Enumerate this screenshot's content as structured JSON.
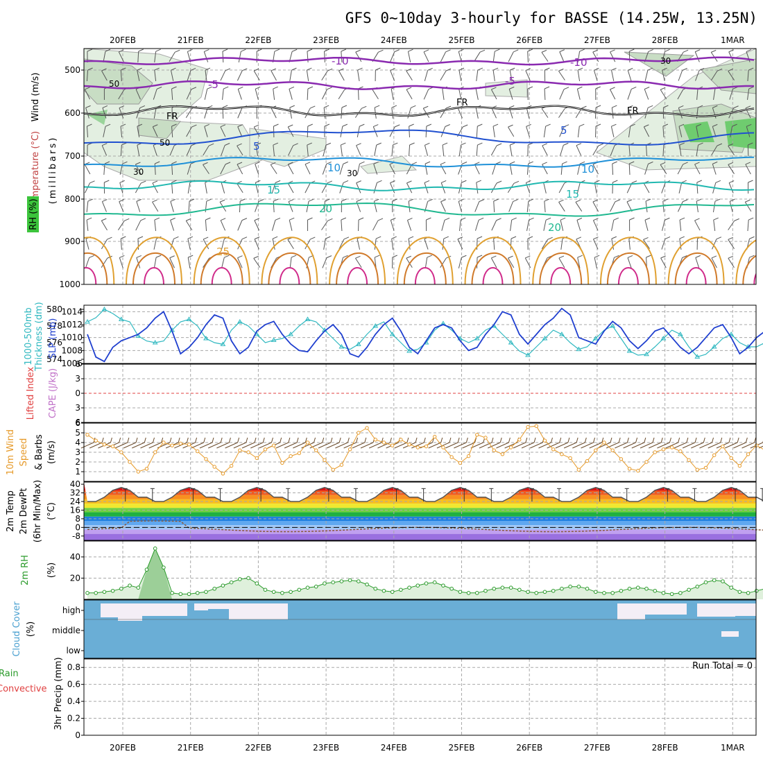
{
  "title": "GFS 0~10day 3-hourly for BASSE (14.25W, 13.25N)",
  "dates": [
    "20FEB",
    "21FEB",
    "22FEB",
    "23FEB",
    "24FEB",
    "25FEB",
    "26FEB",
    "27FEB",
    "28FEB",
    "1MAR"
  ],
  "colors": {
    "grid": "#a8a8a8",
    "wind_barb": "#555555",
    "slp": "#1f3fcf",
    "thickness": "#2fb8c0",
    "speed10m": "#e69a2a",
    "cloud": "#6aaed6",
    "cloud_clear": "#f4eef6",
    "rh_fill": "#dff0dc",
    "rh_line": "#2a9a2a",
    "zero_line": "#e04040"
  },
  "panels": {
    "upper": {
      "label_wind": "Wind (m/s)",
      "label_temp": "Temperature (°C)",
      "label_mb": "(millibars)",
      "label_rh": "RH (%)",
      "pressure_ticks": [
        "500",
        "600",
        "700",
        "800",
        "900",
        "1000"
      ],
      "contour_labels": {
        "t_m10": "-10",
        "t_m5": "-5",
        "t_fr": "FR",
        "t_5": "5",
        "t_10": "10",
        "t_15": "15",
        "t_20": "20",
        "t_25": "25",
        "rh_30": "30",
        "rh_50": "50"
      }
    },
    "slp": {
      "label_a": "1000-500mb",
      "label_b": "Thickness (dm)",
      "label_c": "SLP (mb)",
      "thick_ticks": [
        "580",
        "578",
        "576",
        "574"
      ],
      "slp_ticks": [
        "1014",
        "1012",
        "1010",
        "1008",
        "1006"
      ]
    },
    "cape": {
      "label_a": "Lifted Index",
      "label_b": "CAPE (J/kg)",
      "ticks": [
        "6",
        "3",
        "0",
        "3",
        "6"
      ]
    },
    "wind10": {
      "label_a": "10m Wind",
      "label_b": "Speed",
      "label_c": "& Barbs",
      "label_d": "(m/s)",
      "ticks": [
        "6",
        "5",
        "4",
        "3",
        "2",
        "1"
      ]
    },
    "temp2m": {
      "label_a": "2m Temp",
      "label_b": "2m DewPt",
      "label_c": "(6hr Min/Max)",
      "label_d": "(°C)",
      "ticks": [
        "40",
        "32",
        "24",
        "16",
        "8",
        "0",
        "-8"
      ]
    },
    "rh2m": {
      "label_a": "2m RH",
      "label_b": "(%)",
      "ticks": [
        "40",
        "20"
      ]
    },
    "cloud": {
      "label_a": "Cloud Cover",
      "label_b": "(%)",
      "ticks": [
        "high",
        "middle",
        "low"
      ]
    },
    "precip": {
      "label_a": "Total / Rain",
      "label_b": "Convective",
      "label_c": "3hr Precip (mm)",
      "ticks": [
        "0.8",
        "0.6",
        "0.4",
        "0.2",
        "0"
      ],
      "run_total": "Run Total = 0"
    }
  },
  "chart_data": [
    {
      "type": "line",
      "name": "SLP (mb)",
      "x_start": "19FEB 12Z",
      "x_step_hours": 3,
      "ylim": [
        1006,
        1015
      ],
      "values": [
        1010.5,
        1007.0,
        1006.3,
        1008.5,
        1009.5,
        1010.0,
        1010.5,
        1011.5,
        1013.0,
        1014.0,
        1011.0,
        1007.5,
        1008.5,
        1010.0,
        1012.0,
        1013.5,
        1013.0,
        1009.5,
        1007.5,
        1008.5,
        1011.0,
        1012.0,
        1012.5,
        1010.5,
        1009.0,
        1008.0,
        1007.8,
        1009.5,
        1011.0,
        1012.0,
        1010.5,
        1007.5,
        1007.0,
        1008.5,
        1010.5,
        1012.0,
        1013.0,
        1011.0,
        1008.5,
        1007.5,
        1009.5,
        1011.5,
        1012.0,
        1011.5,
        1009.5,
        1008.0,
        1008.5,
        1010.5,
        1012.0,
        1014.0,
        1013.5,
        1010.5,
        1009.0,
        1010.5,
        1012.0,
        1013.0,
        1014.5,
        1013.5,
        1010.0,
        1009.5,
        1009.0,
        1011.0,
        1012.5,
        1011.5,
        1009.5,
        1008.3,
        1009.5,
        1011.0,
        1011.5,
        1010.0,
        1008.5,
        1007.5,
        1008.5,
        1010.0,
        1011.5,
        1012.0,
        1010.0,
        1007.5,
        1008.5,
        1010.0,
        1011.0,
        1011.5,
        1010.0,
        1009.0,
        1009.0,
        1010.0,
        1012.0,
        1013.5,
        1011.5,
        1008.0,
        1009.5,
        1010.5
      ]
    },
    {
      "type": "line",
      "name": "1000-500mb Thickness (dm)",
      "x_start": "19FEB 12Z",
      "x_step_hours": 3,
      "ylim": [
        573.5,
        580.5
      ],
      "values": [
        578.5,
        579.0,
        580.0,
        579.5,
        578.8,
        578.5,
        576.8,
        576.2,
        576.0,
        576.2,
        577.5,
        578.5,
        578.8,
        578.0,
        576.5,
        576.0,
        575.8,
        577.5,
        578.5,
        578.0,
        577.0,
        576.0,
        576.3,
        576.5,
        577.0,
        578.0,
        578.8,
        578.5,
        577.5,
        576.5,
        575.5,
        575.2,
        575.8,
        577.0,
        578.0,
        578.5,
        577.0,
        576.0,
        575.0,
        575.2,
        576.0,
        577.5,
        578.3,
        577.5,
        576.5,
        576.0,
        576.5,
        577.5,
        578.0,
        577.0,
        576.0,
        575.0,
        574.5,
        575.5,
        576.5,
        577.5,
        577.0,
        576.0,
        575.2,
        575.5,
        576.5,
        577.5,
        578.0,
        576.5,
        575.0,
        574.5,
        574.6,
        575.5,
        576.5,
        577.5,
        577.0,
        575.5,
        574.3,
        574.6,
        575.5,
        576.5,
        577.0,
        576.0,
        575.5,
        575.5,
        576.0,
        577.0,
        578.5,
        578.5,
        577.5,
        576.3,
        575.5,
        575.5,
        576.5,
        576.0,
        575.0,
        574.3,
        574.5
      ]
    },
    {
      "type": "line",
      "name": "10m Wind Speed (m/s)",
      "x_start": "19FEB 12Z",
      "x_step_hours": 3,
      "ylim": [
        0,
        6
      ],
      "values": [
        4.8,
        4.2,
        3.8,
        3.6,
        3.0,
        2.0,
        1.0,
        1.3,
        3.0,
        4.0,
        3.7,
        3.9,
        3.8,
        3.1,
        2.3,
        1.5,
        0.8,
        1.6,
        3.2,
        3.0,
        2.4,
        3.3,
        3.7,
        1.9,
        2.6,
        2.9,
        4.0,
        3.2,
        2.2,
        1.2,
        1.7,
        3.3,
        5.0,
        5.5,
        4.3,
        4.0,
        3.7,
        4.3,
        3.8,
        3.5,
        3.6,
        4.6,
        3.5,
        2.5,
        1.9,
        2.6,
        4.8,
        4.5,
        3.2,
        2.8,
        3.5,
        4.3,
        5.6,
        5.7,
        4.2,
        3.3,
        2.8,
        2.4,
        1.2,
        2.1,
        3.2,
        4.0,
        3.2,
        2.3,
        1.3,
        1.1,
        2.0,
        3.0,
        3.3,
        3.5,
        3.1,
        2.2,
        1.2,
        1.4,
        2.7,
        3.6,
        2.4,
        1.6,
        2.8,
        3.7,
        3.2,
        2.7,
        1.2,
        1.0,
        0.8,
        1.4,
        2.1,
        3.5,
        4.9,
        4.4,
        2.2
      ]
    },
    {
      "type": "line",
      "name": "2m RH (%)",
      "x_start": "19FEB 12Z",
      "x_step_hours": 3,
      "ylim": [
        0,
        50
      ],
      "values": [
        6,
        6,
        7,
        8,
        10,
        13,
        11,
        28,
        48,
        30,
        6,
        5,
        5,
        6,
        7,
        10,
        13,
        16,
        19,
        20,
        15,
        9,
        7,
        6,
        7,
        9,
        11,
        12,
        15,
        16,
        17,
        18,
        17,
        14,
        10,
        8,
        7,
        9,
        11,
        13,
        15,
        16,
        13,
        10,
        7,
        6,
        6,
        8,
        10,
        11,
        11,
        9,
        7,
        6,
        7,
        8,
        10,
        12,
        12,
        10,
        7,
        6,
        6,
        8,
        10,
        11,
        10,
        8,
        6,
        5,
        6,
        9,
        12,
        16,
        18,
        17,
        11,
        7,
        6,
        8,
        10,
        14,
        18,
        23,
        23,
        18,
        10,
        7,
        6,
        6,
        9,
        17,
        28,
        25,
        25,
        28
      ]
    },
    {
      "type": "line",
      "name": "3hr Precip (mm)",
      "ylim": [
        0,
        0.9
      ],
      "values": [
        0
      ]
    }
  ]
}
